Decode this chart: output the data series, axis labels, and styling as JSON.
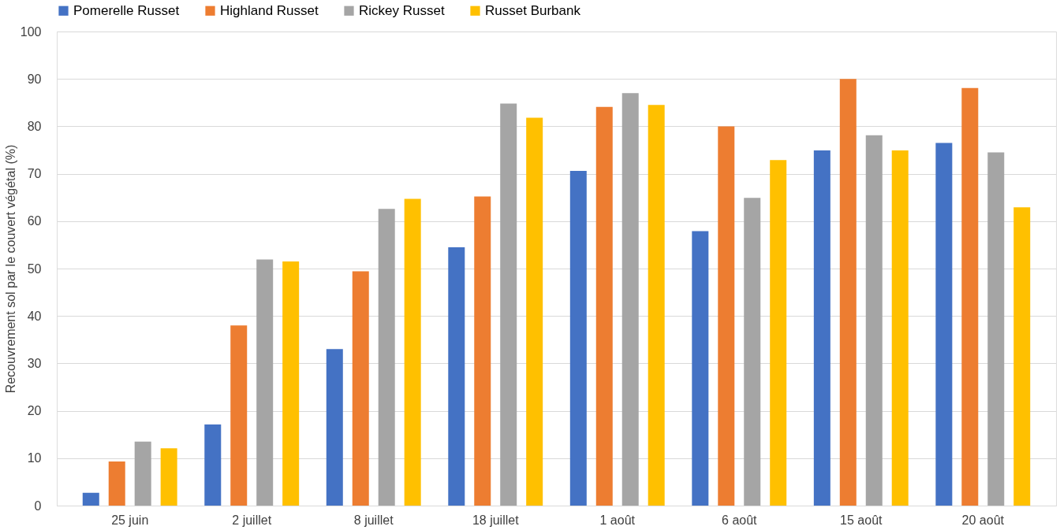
{
  "chart_data": {
    "type": "bar",
    "ylabel": "Recouvrement  sol par le couvert végétal  (%)",
    "categories": [
      "25 juin",
      "2 juillet",
      "8 juillet",
      "18 juillet",
      "1 août",
      "6 août",
      "15 août",
      "20 août"
    ],
    "series": [
      {
        "name": "Pomerelle Russet",
        "color": "#4472c4",
        "values": [
          2.7,
          17.1,
          33.0,
          54.5,
          70.6,
          57.9,
          74.9,
          76.5
        ]
      },
      {
        "name": "Highland Russet",
        "color": "#ed7d31",
        "values": [
          9.3,
          38.0,
          49.4,
          65.2,
          84.1,
          80.0,
          90.0,
          88.1
        ]
      },
      {
        "name": "Rickey Russet",
        "color": "#a5a5a5",
        "values": [
          13.5,
          51.9,
          62.6,
          84.8,
          87.0,
          64.9,
          78.1,
          74.5
        ]
      },
      {
        "name": "Russet Burbank",
        "color": "#ffc000",
        "values": [
          12.1,
          51.5,
          64.7,
          81.8,
          84.5,
          72.9,
          74.9,
          62.9
        ]
      }
    ],
    "ylim": [
      0,
      100
    ],
    "yticks": [
      0,
      10,
      20,
      30,
      40,
      50,
      60,
      70,
      80,
      90,
      100
    ],
    "grid": "y",
    "legend": "top"
  }
}
